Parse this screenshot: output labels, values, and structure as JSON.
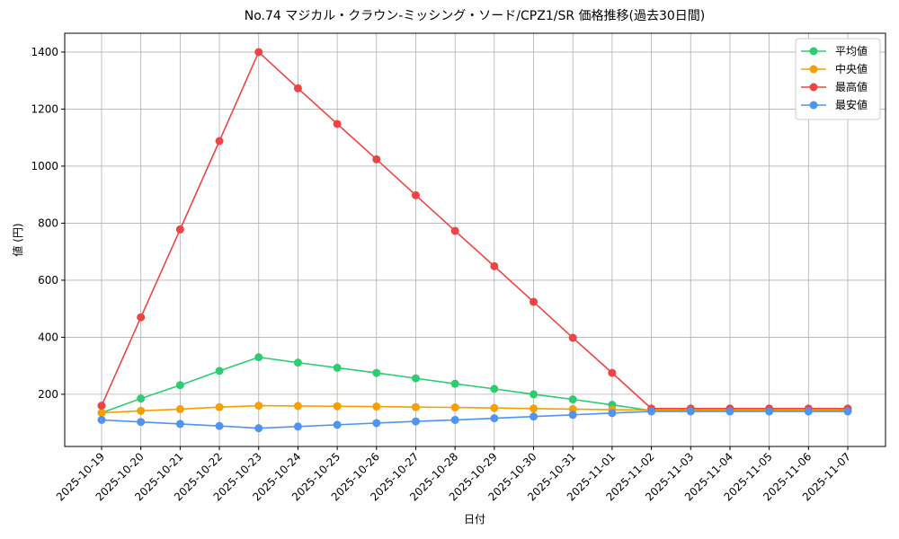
{
  "chart_data": {
    "type": "line",
    "title": "No.74 マジカル・クラウン-ミッシング・ソード/CPZ1/SR 価格推移(過去30日間)",
    "x_label": "日付",
    "y_label": "値 (円)",
    "categories": [
      "2025-10-19",
      "2025-10-20",
      "2025-10-21",
      "2025-10-22",
      "2025-10-23",
      "2025-10-24",
      "2025-10-25",
      "2025-10-26",
      "2025-10-27",
      "2025-10-28",
      "2025-10-29",
      "2025-10-30",
      "2025-10-31",
      "2025-11-01",
      "2025-11-02",
      "2025-11-03",
      "2025-11-04",
      "2025-11-05",
      "2025-11-06",
      "2025-11-07"
    ],
    "series": [
      {
        "name": "平均値",
        "color": "#2ecc71",
        "values": [
          135,
          185,
          232,
          282,
          330,
          311,
          293,
          275,
          256,
          237,
          219,
          200,
          182,
          163,
          143,
          143,
          143,
          143,
          143,
          143
        ]
      },
      {
        "name": "中央値",
        "color": "#f5a000",
        "values": [
          135,
          142,
          148,
          155,
          160,
          159,
          158,
          157,
          155,
          154,
          152,
          150,
          148,
          146,
          145,
          145,
          145,
          145,
          145,
          145
        ]
      },
      {
        "name": "最高値",
        "color": "#ef4444",
        "values": [
          160,
          470,
          778,
          1088,
          1400,
          1273,
          1148,
          1024,
          898,
          773,
          649,
          524,
          398,
          275,
          150,
          150,
          150,
          150,
          150,
          150
        ]
      },
      {
        "name": "最安値",
        "color": "#4f94ef",
        "values": [
          110,
          103,
          96,
          89,
          81,
          87,
          93,
          99,
          105,
          110,
          116,
          122,
          128,
          134,
          140,
          140,
          140,
          140,
          140,
          140
        ]
      }
    ],
    "ylim": [
      17,
      1466
    ],
    "yticks": [
      200,
      400,
      600,
      800,
      1000,
      1200,
      1400
    ],
    "grid": true,
    "legend": "upper-right"
  }
}
